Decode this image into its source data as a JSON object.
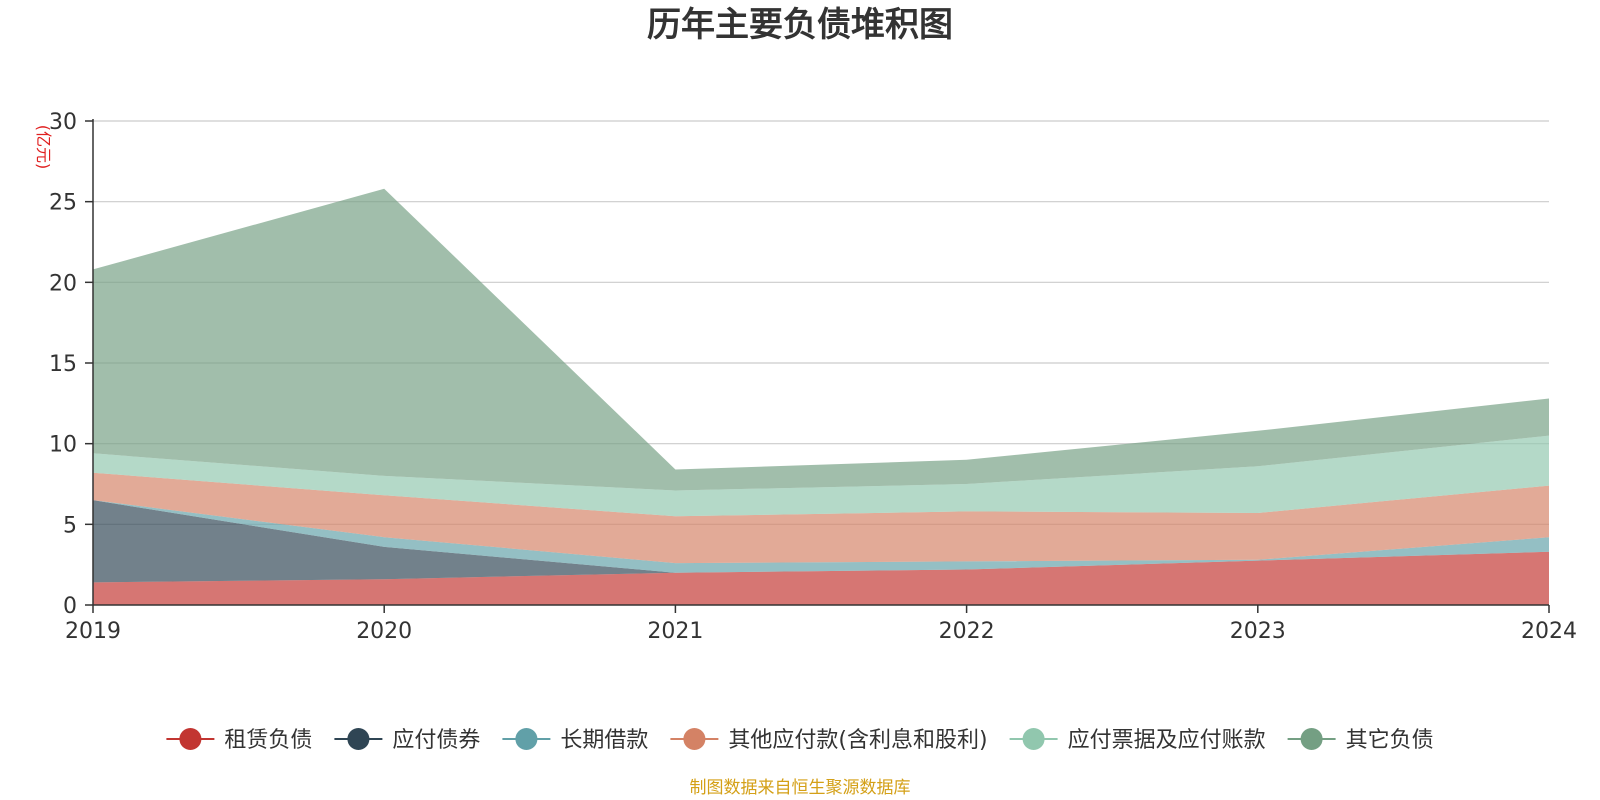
{
  "chart_data": {
    "type": "area",
    "stacked": true,
    "title": "历年主要负债堆积图",
    "unit_label": "(亿元)",
    "x": [
      "2019",
      "2020",
      "2021",
      "2022",
      "2023",
      "2024"
    ],
    "ylim": [
      0,
      30
    ],
    "yticks": [
      0,
      5,
      10,
      15,
      20,
      25,
      30
    ],
    "grid": true,
    "legend_position": "bottom",
    "series": [
      {
        "name": "租赁负债",
        "color": "#c23531",
        "values": [
          1.4,
          1.6,
          2.0,
          2.2,
          2.75,
          3.3
        ]
      },
      {
        "name": "应付债券",
        "color": "#2f4554",
        "values": [
          5.1,
          2.0,
          0.0,
          0.0,
          0.0,
          0.0
        ]
      },
      {
        "name": "长期借款",
        "color": "#61a0a8",
        "values": [
          0.0,
          0.6,
          0.6,
          0.5,
          0.05,
          0.9
        ]
      },
      {
        "name": "其他应付款(含利息和股利)",
        "color": "#d48265",
        "values": [
          1.7,
          2.6,
          2.9,
          3.1,
          2.9,
          3.2
        ]
      },
      {
        "name": "应付票据及应付账款",
        "color": "#91c7ae",
        "values": [
          1.2,
          1.2,
          1.6,
          1.7,
          2.9,
          3.1
        ]
      },
      {
        "name": "其它负债",
        "color": "#749f83",
        "values": [
          11.4,
          17.8,
          1.3,
          1.5,
          2.2,
          2.3
        ]
      }
    ]
  },
  "source_note": "制图数据来自恒生聚源数据库",
  "colors": {
    "title": "#333333",
    "unit_label": "#e02020",
    "source_note": "#d4a017",
    "axis": "#333333",
    "grid": "#cccccc"
  }
}
